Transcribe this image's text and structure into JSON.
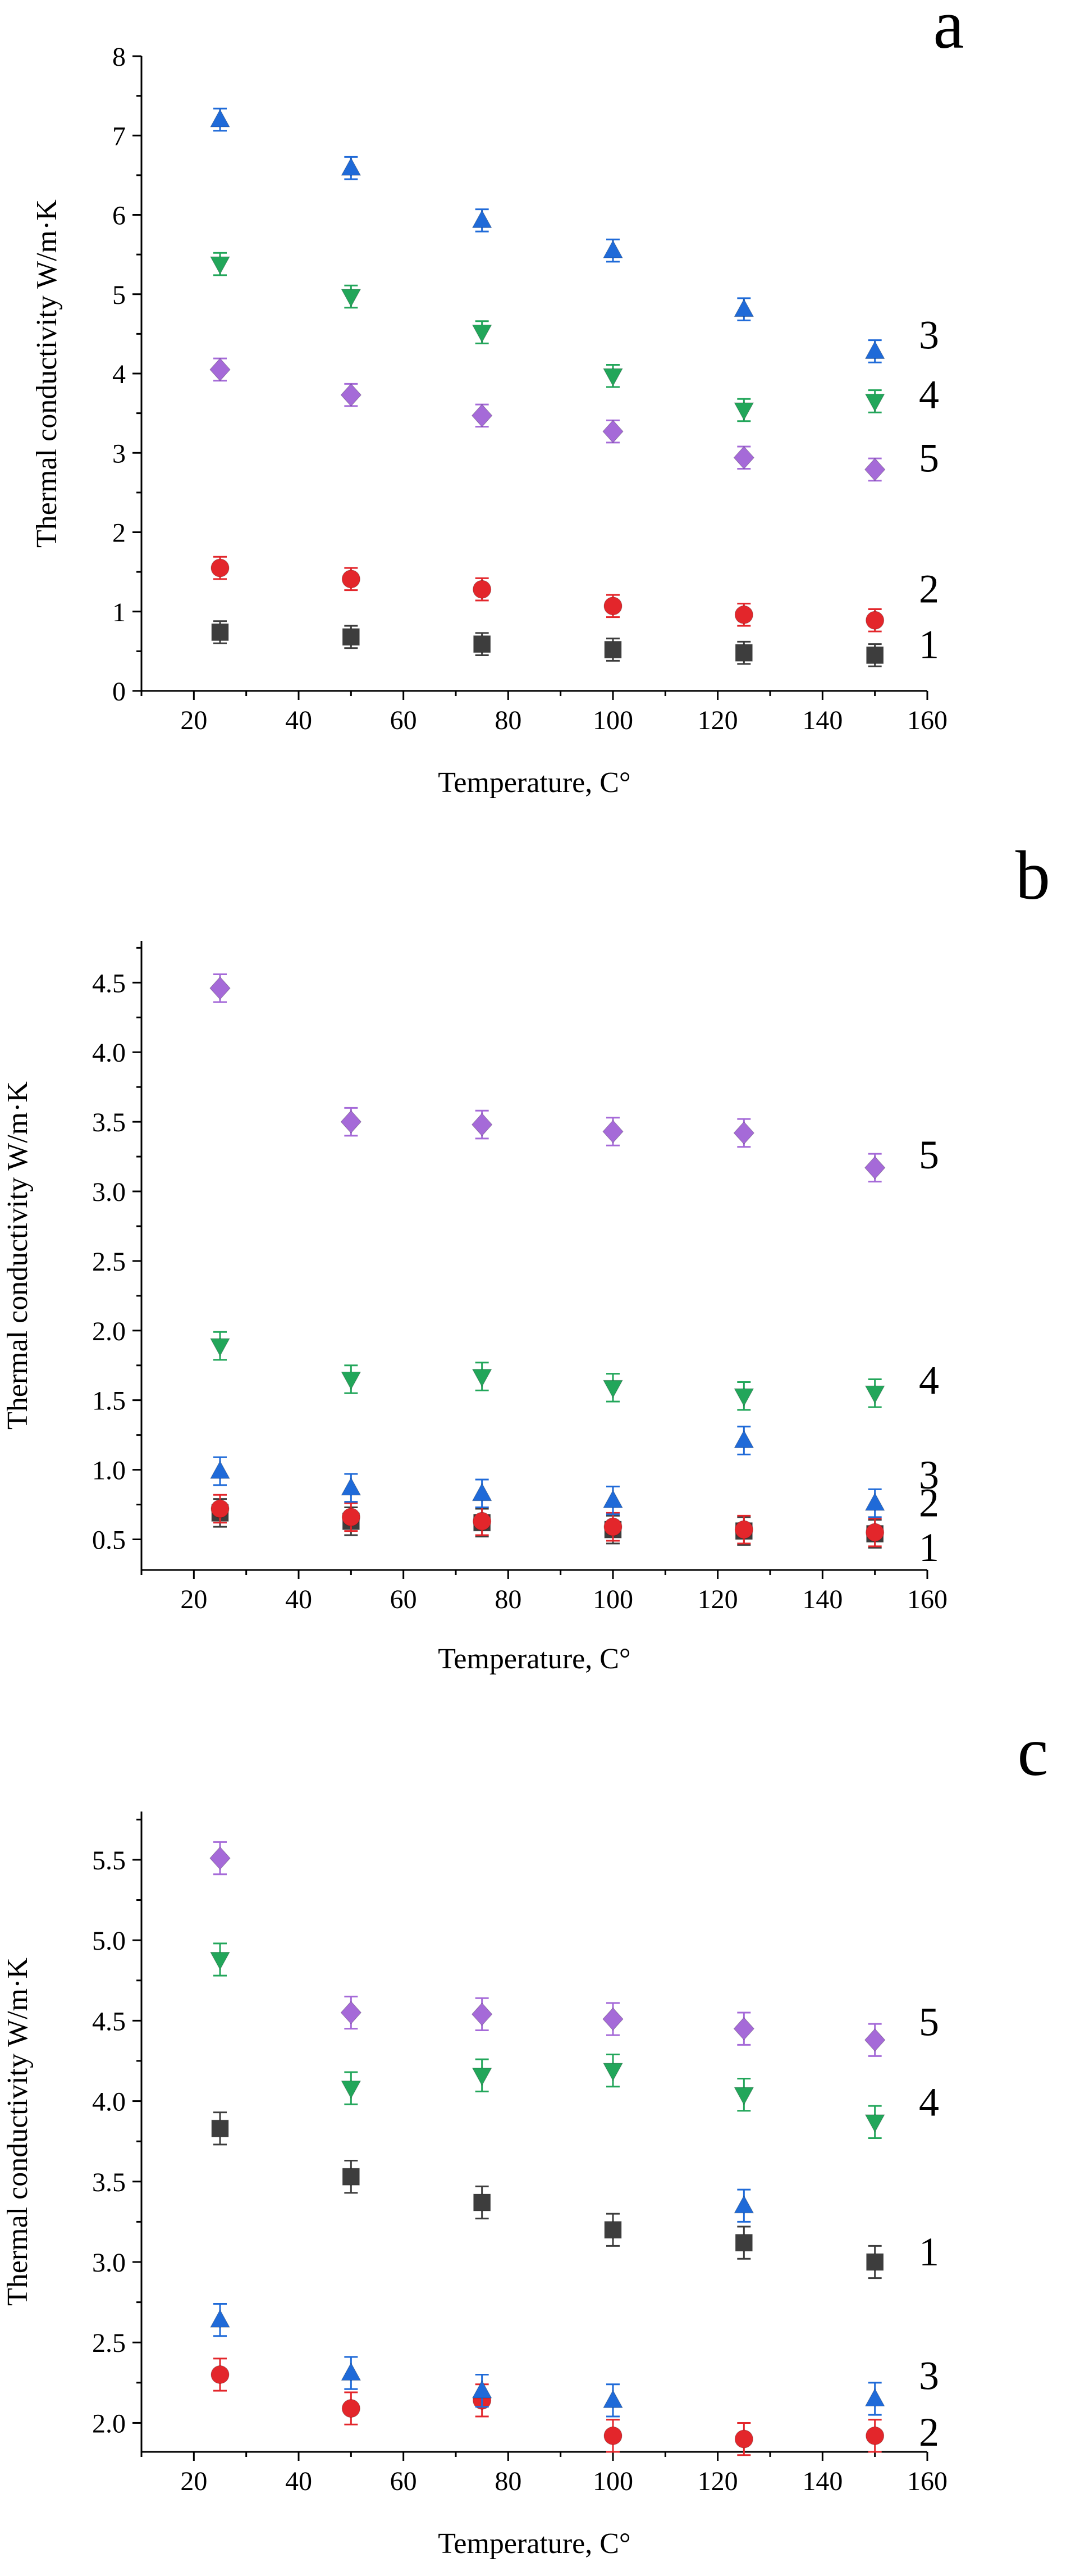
{
  "chart_data": [
    {
      "type": "scatter",
      "panel_label": "a",
      "title": "",
      "xlabel": "Temperature, C°",
      "ylabel": "Thermal conductivity W/m·K",
      "xlim": [
        10,
        160
      ],
      "ylim": [
        0,
        8
      ],
      "x_ticks": [
        "20",
        "40",
        "60",
        "80",
        "100",
        "120",
        "140",
        "160"
      ],
      "y_ticks": [
        "0",
        "1",
        "2",
        "3",
        "4",
        "5",
        "6",
        "7",
        "8"
      ],
      "x": [
        25,
        50,
        75,
        100,
        125,
        150
      ],
      "series": [
        {
          "name": "1",
          "marker": "square",
          "color": "#3d3d3d",
          "values": [
            0.74,
            0.68,
            0.59,
            0.52,
            0.48,
            0.45
          ],
          "errors": [
            0.14,
            0.14,
            0.14,
            0.14,
            0.14,
            0.14
          ],
          "label_value": 0.6
        },
        {
          "name": "2",
          "marker": "circle",
          "color": "#e3262b",
          "values": [
            1.55,
            1.41,
            1.28,
            1.07,
            0.96,
            0.89
          ],
          "errors": [
            0.14,
            0.14,
            0.14,
            0.14,
            0.14,
            0.14
          ],
          "label_value": 1.3
        },
        {
          "name": "3",
          "marker": "triangle-up",
          "color": "#1f6ad8",
          "values": [
            7.2,
            6.59,
            5.93,
            5.55,
            4.81,
            4.28
          ],
          "errors": [
            0.14,
            0.14,
            0.14,
            0.14,
            0.14,
            0.14
          ],
          "label_value": 4.5
        },
        {
          "name": "4",
          "marker": "triangle-down",
          "color": "#22a65a",
          "values": [
            5.38,
            4.97,
            4.52,
            3.97,
            3.54,
            3.65
          ],
          "errors": [
            0.14,
            0.14,
            0.14,
            0.14,
            0.14,
            0.14
          ],
          "label_value": 3.75
        },
        {
          "name": "5",
          "marker": "diamond",
          "color": "#a56ad8",
          "values": [
            4.05,
            3.73,
            3.47,
            3.27,
            2.94,
            2.79
          ],
          "errors": [
            0.14,
            0.14,
            0.14,
            0.14,
            0.14,
            0.14
          ],
          "label_value": 2.95
        }
      ]
    },
    {
      "type": "scatter",
      "panel_label": "b",
      "title": "",
      "xlabel": "Temperature, C°",
      "ylabel": "Thermal conductivity W/m·K",
      "xlim": [
        10,
        160
      ],
      "ylim": [
        0.28,
        4.8
      ],
      "x_ticks": [
        "20",
        "40",
        "60",
        "80",
        "100",
        "120",
        "140",
        "160"
      ],
      "y_ticks": [
        "0.5",
        "1.0",
        "1.5",
        "2.0",
        "2.5",
        "3.0",
        "3.5",
        "4.0",
        "4.5"
      ],
      "x": [
        25,
        50,
        75,
        100,
        125,
        150
      ],
      "series": [
        {
          "name": "1",
          "marker": "square",
          "color": "#3d3d3d",
          "values": [
            0.69,
            0.63,
            0.62,
            0.57,
            0.56,
            0.54
          ],
          "errors": [
            0.1,
            0.1,
            0.1,
            0.1,
            0.1,
            0.1
          ],
          "label_value": 0.45
        },
        {
          "name": "2",
          "marker": "circle",
          "color": "#e3262b",
          "values": [
            0.72,
            0.66,
            0.63,
            0.59,
            0.57,
            0.55
          ],
          "errors": [
            0.1,
            0.1,
            0.1,
            0.1,
            0.1,
            0.1
          ],
          "label_value": 0.77
        },
        {
          "name": "3",
          "marker": "triangle-up",
          "color": "#1f6ad8",
          "values": [
            0.99,
            0.87,
            0.83,
            0.78,
            1.21,
            0.76
          ],
          "errors": [
            0.1,
            0.1,
            0.1,
            0.1,
            0.1,
            0.1
          ],
          "label_value": 0.97
        },
        {
          "name": "4",
          "marker": "triangle-down",
          "color": "#22a65a",
          "values": [
            1.89,
            1.65,
            1.67,
            1.59,
            1.53,
            1.55
          ],
          "errors": [
            0.1,
            0.1,
            0.1,
            0.1,
            0.1,
            0.1
          ],
          "label_value": 1.65
        },
        {
          "name": "5",
          "marker": "diamond",
          "color": "#a56ad8",
          "values": [
            4.46,
            3.5,
            3.48,
            3.43,
            3.42,
            3.17
          ],
          "errors": [
            0.1,
            0.1,
            0.1,
            0.1,
            0.1,
            0.1
          ],
          "label_value": 3.27
        }
      ]
    },
    {
      "type": "scatter",
      "panel_label": "c",
      "title": "",
      "xlabel": "Temperature, C°",
      "ylabel": "Thermal conductivity W/m·K",
      "xlim": [
        10,
        160
      ],
      "ylim": [
        1.82,
        5.8
      ],
      "x_ticks": [
        "20",
        "40",
        "60",
        "80",
        "100",
        "120",
        "140",
        "160"
      ],
      "y_ticks": [
        "2.0",
        "2.5",
        "3.0",
        "3.5",
        "4.0",
        "4.5",
        "5.0",
        "5.5"
      ],
      "x": [
        25,
        50,
        75,
        100,
        125,
        150
      ],
      "series": [
        {
          "name": "1",
          "marker": "square",
          "color": "#3d3d3d",
          "values": [
            3.83,
            3.53,
            3.37,
            3.2,
            3.12,
            3.0
          ],
          "errors": [
            0.1,
            0.1,
            0.1,
            0.1,
            0.1,
            0.1
          ],
          "label_value": 3.07
        },
        {
          "name": "2",
          "marker": "circle",
          "color": "#e3262b",
          "values": [
            2.3,
            2.09,
            2.14,
            1.92,
            1.9,
            1.92
          ],
          "errors": [
            0.1,
            0.1,
            0.1,
            0.1,
            0.1,
            0.1
          ],
          "label_value": 1.95
        },
        {
          "name": "3",
          "marker": "triangle-up",
          "color": "#1f6ad8",
          "values": [
            2.64,
            2.31,
            2.2,
            2.14,
            3.35,
            2.15
          ],
          "errors": [
            0.1,
            0.1,
            0.1,
            0.1,
            0.1,
            0.1
          ],
          "label_value": 2.3
        },
        {
          "name": "4",
          "marker": "triangle-down",
          "color": "#22a65a",
          "values": [
            4.88,
            4.08,
            4.16,
            4.19,
            4.04,
            3.87
          ],
          "errors": [
            0.1,
            0.1,
            0.1,
            0.1,
            0.1,
            0.1
          ],
          "label_value": 4.0
        },
        {
          "name": "5",
          "marker": "diamond",
          "color": "#a56ad8",
          "values": [
            5.51,
            4.55,
            4.54,
            4.51,
            4.45,
            4.38
          ],
          "errors": [
            0.1,
            0.1,
            0.1,
            0.1,
            0.1,
            0.1
          ],
          "label_value": 4.5
        }
      ]
    }
  ]
}
